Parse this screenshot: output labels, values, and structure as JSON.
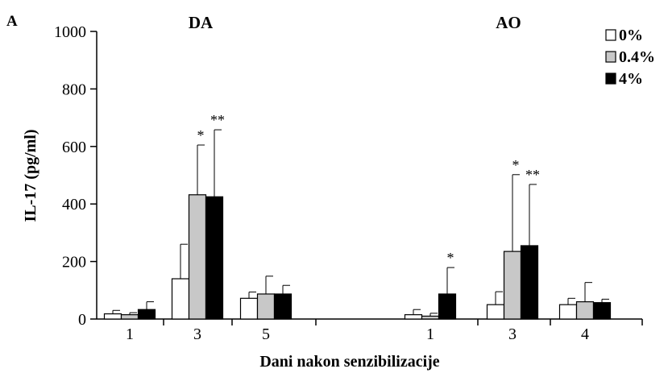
{
  "chart_data": {
    "type": "bar",
    "panel_label": "A",
    "ylabel": "IL-17 (pg/ml)",
    "xlabel": "Dani nakon senzibilizacije",
    "ylim": [
      0,
      1000
    ],
    "yticks": [
      "0",
      "200",
      "400",
      "600",
      "800",
      "1000"
    ],
    "grid": false,
    "legend_position": "top-right",
    "series": [
      {
        "name": "0%",
        "color": "#ffffff"
      },
      {
        "name": "0.4%",
        "color": "#c8c8c8"
      },
      {
        "name": "4%",
        "color": "#000000"
      }
    ],
    "groups": [
      {
        "title": "DA",
        "categories": [
          "1",
          "3",
          "5"
        ],
        "values": [
          [
            18,
            140,
            72
          ],
          [
            15,
            432,
            87
          ],
          [
            33,
            425,
            87
          ]
        ],
        "errors": [
          [
            12,
            120,
            22
          ],
          [
            7,
            173,
            62
          ],
          [
            27,
            233,
            30
          ]
        ],
        "significance": [
          [
            "",
            "",
            ""
          ],
          [
            "",
            "*",
            ""
          ],
          [
            "",
            "**",
            ""
          ]
        ]
      },
      {
        "title": "AO",
        "categories": [
          "1",
          "3",
          "4"
        ],
        "values": [
          [
            15,
            50,
            50
          ],
          [
            10,
            235,
            60
          ],
          [
            87,
            255,
            57
          ]
        ],
        "errors": [
          [
            18,
            45,
            22
          ],
          [
            10,
            267,
            67
          ],
          [
            92,
            213,
            12
          ]
        ],
        "significance": [
          [
            "",
            "",
            ""
          ],
          [
            "",
            "*",
            ""
          ],
          [
            "*",
            "**",
            ""
          ]
        ]
      }
    ]
  }
}
